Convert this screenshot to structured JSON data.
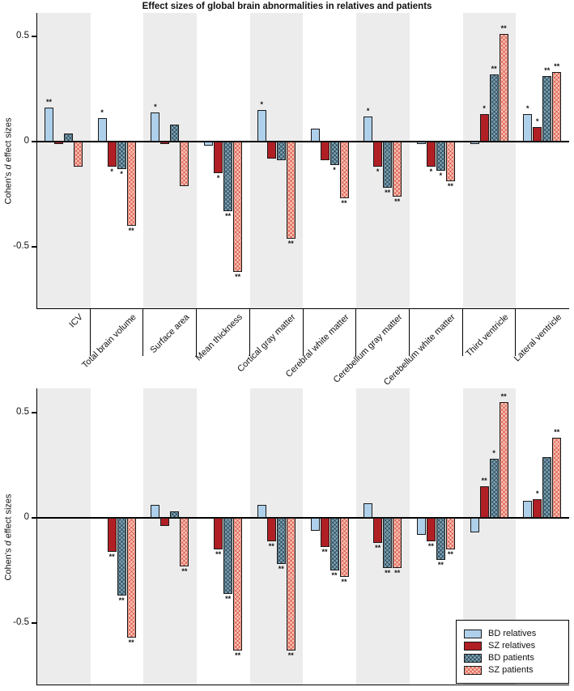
{
  "chart_data": {
    "type": "bar",
    "title": "Effect sizes of global brain abnormalities in relatives and patients",
    "ylabel": {
      "prefix": "Cohen's ",
      "italic": "d",
      "suffix": " effect sizes"
    },
    "yticks": [
      "0.5",
      "0",
      "-0.5"
    ],
    "ylim": [
      -0.7,
      0.6
    ],
    "grid": false,
    "legend_position": "bottom-right",
    "categories": [
      "ICV",
      "Total brain volume",
      "Surface area",
      "Mean thickness",
      "Cortical gray matter",
      "Cerebral white matter",
      "Cerebellum gray matter",
      "Cerebellum white matter",
      "Third ventricle",
      "Lateral ventricle"
    ],
    "colors": {
      "bd_relatives": "#aed0ea",
      "sz_relatives": "#b01f24",
      "bd_patients": "#7fa3b0",
      "sz_patients": "#fac5b8",
      "band": "#ececec"
    },
    "panels": [
      {
        "name": "top-panel",
        "series": [
          {
            "name": "BD relatives",
            "values": [
              0.16,
              0.11,
              0.14,
              -0.02,
              0.15,
              0.06,
              0.12,
              -0.01,
              -0.01,
              0.13
            ],
            "sig": [
              "**",
              "*",
              "*",
              "",
              "*",
              "",
              "*",
              "",
              "",
              "*"
            ]
          },
          {
            "name": "SZ relatives",
            "values": [
              -0.01,
              -0.12,
              -0.01,
              -0.15,
              -0.08,
              -0.09,
              -0.12,
              -0.12,
              0.13,
              0.07
            ],
            "sig": [
              "",
              "*",
              "",
              "*",
              "",
              "",
              "*",
              "*",
              "*",
              "*"
            ]
          },
          {
            "name": "BD patients",
            "values": [
              0.04,
              -0.13,
              0.08,
              -0.33,
              -0.09,
              -0.11,
              -0.22,
              -0.14,
              0.32,
              0.31
            ],
            "sig": [
              "",
              "*",
              "",
              "**",
              "",
              "*",
              "**",
              "*",
              "**",
              "**"
            ]
          },
          {
            "name": "SZ patients",
            "values": [
              -0.12,
              -0.4,
              -0.21,
              -0.62,
              -0.46,
              -0.27,
              -0.26,
              -0.19,
              0.51,
              0.33
            ],
            "sig": [
              "",
              "**",
              "",
              "**",
              "**",
              "**",
              "**",
              "**",
              "**",
              "**"
            ]
          }
        ]
      },
      {
        "name": "bottom-panel",
        "series": [
          {
            "name": "BD relatives",
            "values": [
              0,
              0,
              0.06,
              0,
              0.06,
              -0.06,
              0.07,
              -0.08,
              -0.07,
              0.08
            ],
            "sig": [
              "",
              "",
              "",
              "",
              "",
              "",
              "",
              "",
              "",
              ""
            ]
          },
          {
            "name": "SZ relatives",
            "values": [
              0,
              -0.16,
              -0.04,
              -0.15,
              -0.11,
              -0.14,
              -0.12,
              -0.11,
              0.15,
              0.09
            ],
            "sig": [
              "",
              "**",
              "",
              "**",
              "**",
              "**",
              "**",
              "**",
              "**",
              "*"
            ]
          },
          {
            "name": "BD patients",
            "values": [
              0,
              -0.37,
              0.03,
              -0.36,
              -0.22,
              -0.25,
              -0.24,
              -0.2,
              0.28,
              0.29
            ],
            "sig": [
              "",
              "**",
              "",
              "**",
              "**",
              "**",
              "**",
              "**",
              "*",
              ""
            ]
          },
          {
            "name": "SZ patients",
            "values": [
              0,
              -0.57,
              -0.23,
              -0.63,
              -0.63,
              -0.28,
              -0.24,
              -0.15,
              0.55,
              0.38
            ],
            "sig": [
              "",
              "**",
              "**",
              "**",
              "**",
              "**",
              "**",
              "**",
              "**",
              "**"
            ]
          }
        ]
      }
    ],
    "legend": [
      "BD relatives",
      "SZ relatives",
      "BD patients",
      "SZ patients"
    ]
  }
}
